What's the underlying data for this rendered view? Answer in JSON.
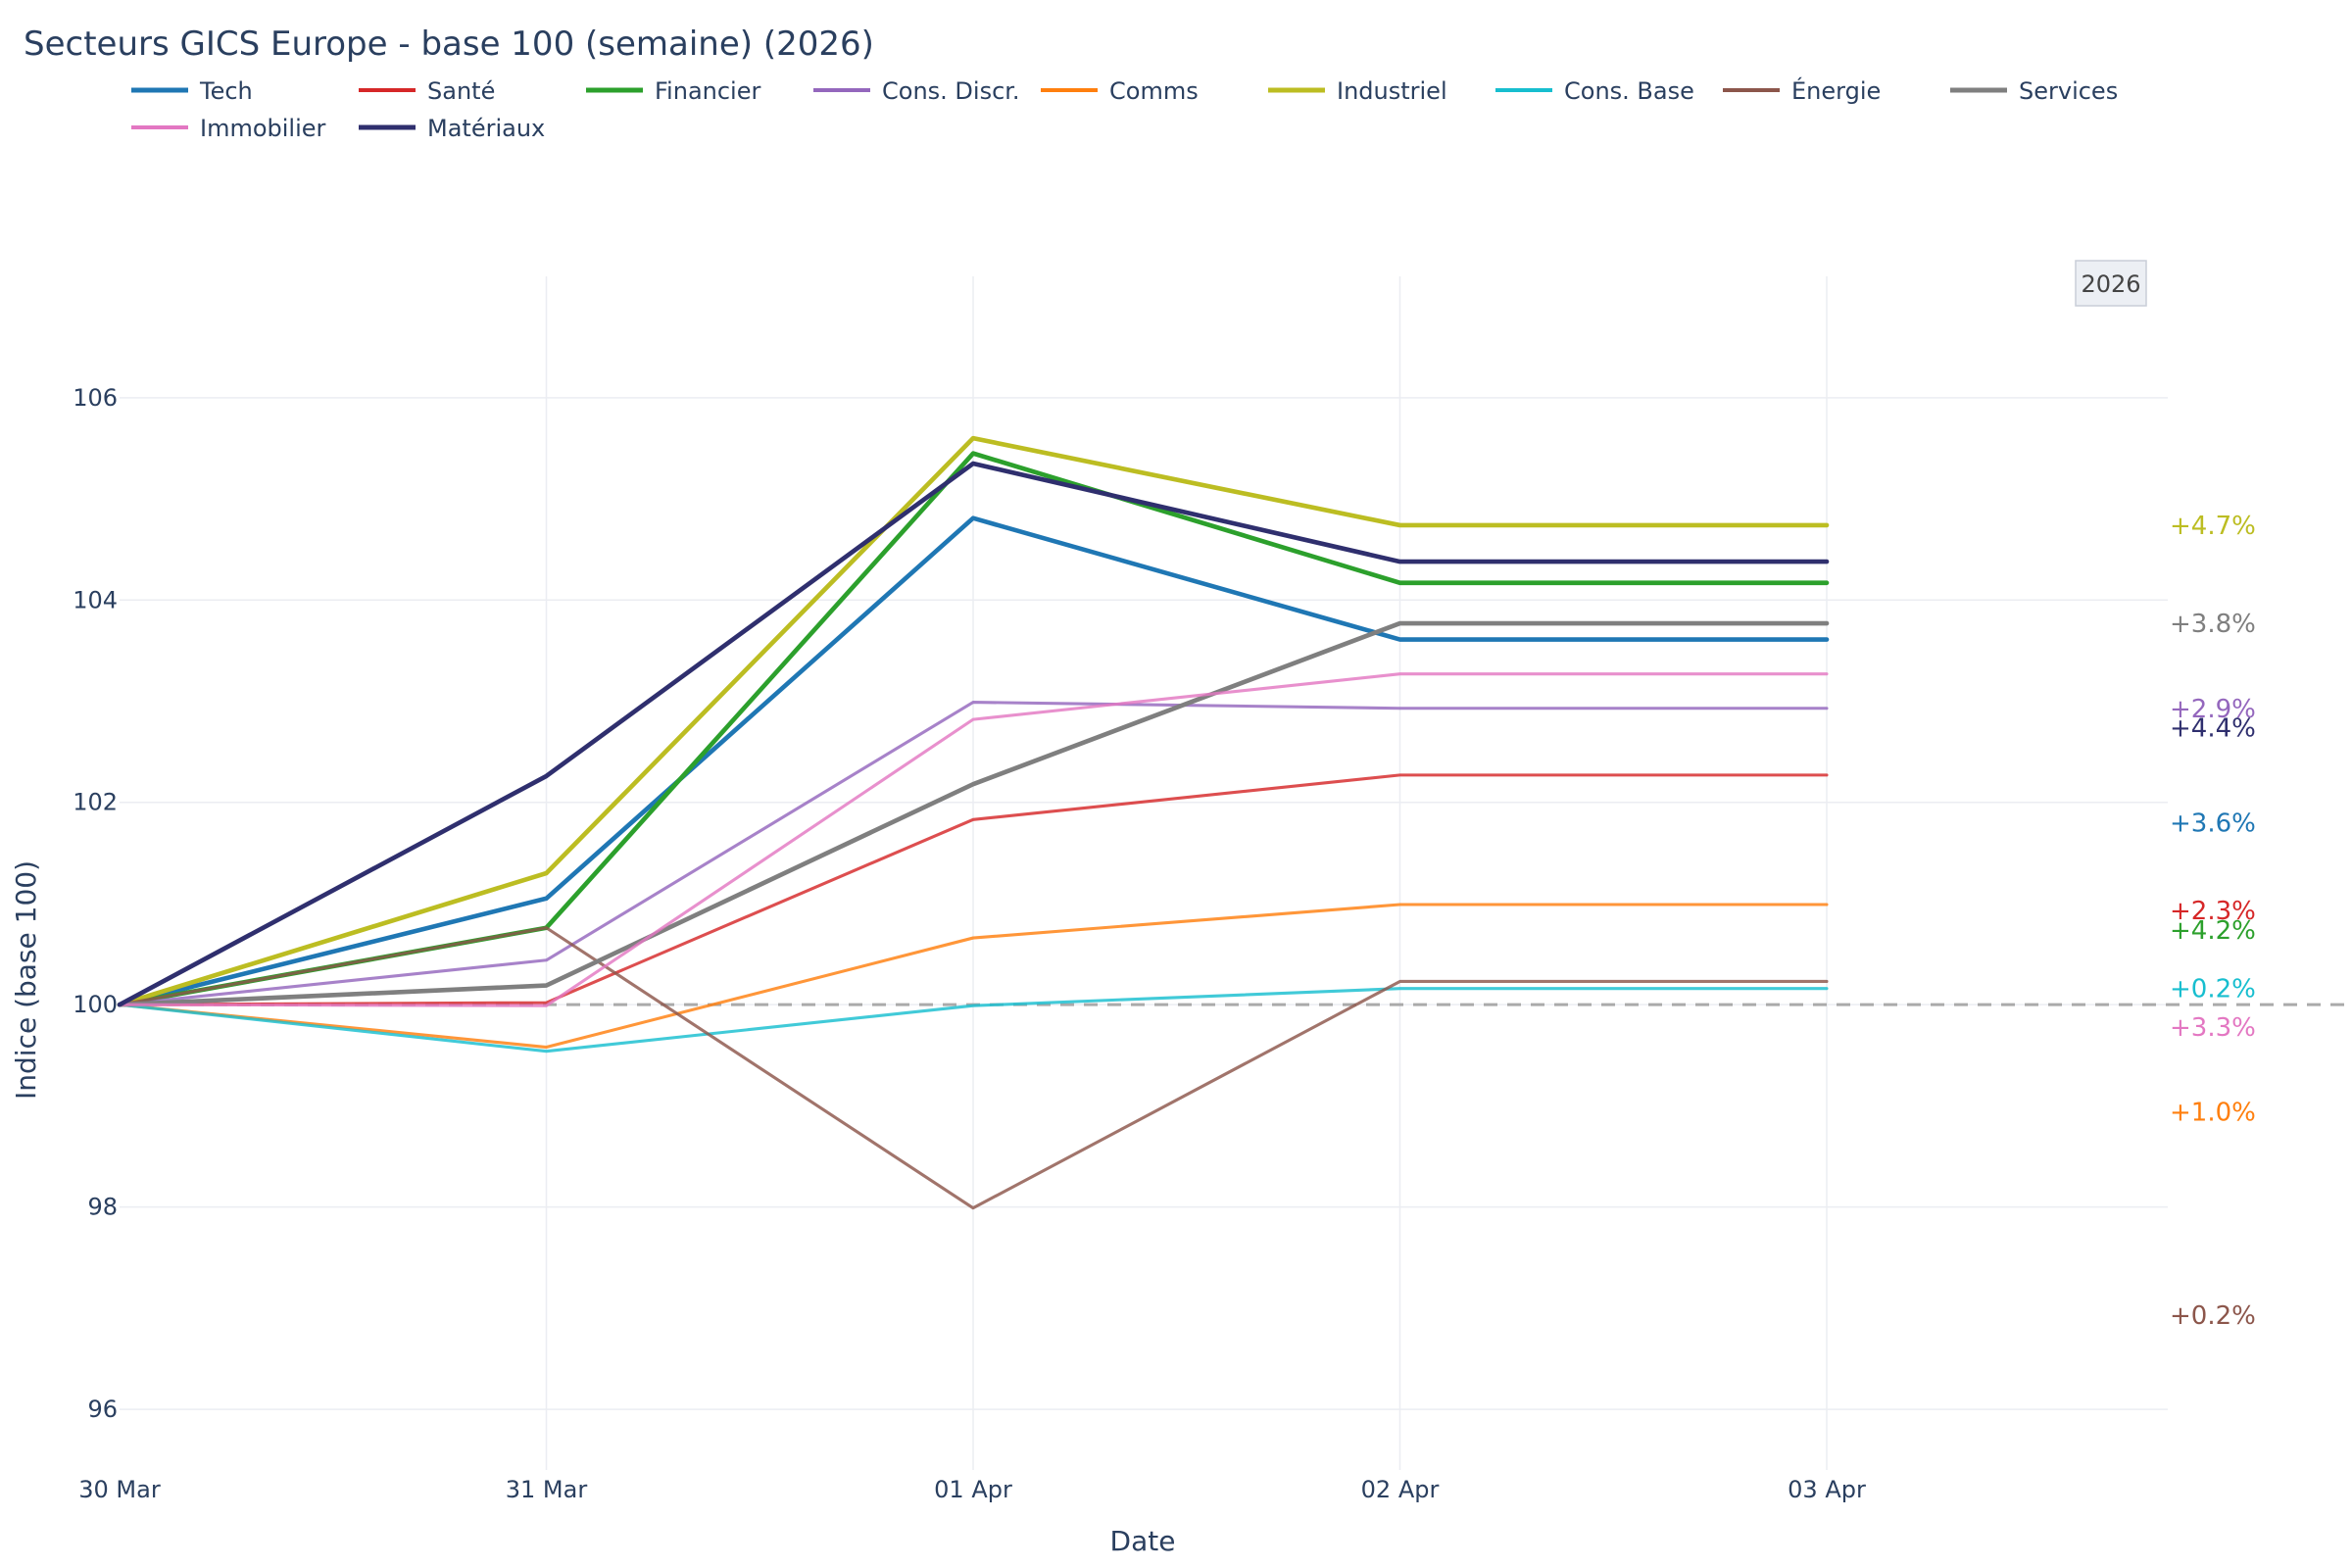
{
  "chart_data": {
    "type": "line",
    "title": "Secteurs GICS Europe - base 100 (semaine) (2026)",
    "xlabel": "Date",
    "ylabel": "Indice (base 100)",
    "x": [
      "30 Mar",
      "31 Mar",
      "01 Apr",
      "02 Apr",
      "03 Apr"
    ],
    "yticks": [
      96,
      98,
      100,
      102,
      104,
      106
    ],
    "ylim": [
      95.4,
      107.2
    ],
    "grid": true,
    "legend_position": "top-left",
    "baseline": 100,
    "year_badge": "2026",
    "series": [
      {
        "name": "Tech",
        "color": "#1f77b4",
        "width": 3,
        "values": [
          100,
          101.05,
          104.81,
          103.61,
          103.61
        ],
        "end_label": "+3.6%",
        "end_label_y": 101.8
      },
      {
        "name": "Santé",
        "color": "#d62728",
        "width": 2,
        "values": [
          100,
          100.02,
          101.83,
          102.27,
          102.27
        ],
        "end_label": "+2.3%",
        "end_label_y": 100.93
      },
      {
        "name": "Financier",
        "color": "#2ca02c",
        "width": 3,
        "values": [
          100,
          100.76,
          105.45,
          104.17,
          104.17
        ],
        "end_label": "+4.2%",
        "end_label_y": 100.74
      },
      {
        "name": "Cons. Discr.",
        "color": "#9467bd",
        "width": 2,
        "values": [
          100,
          100.44,
          102.99,
          102.93,
          102.93
        ],
        "end_label": "+2.9%",
        "end_label_y": 102.93
      },
      {
        "name": "Comms",
        "color": "#ff7f0e",
        "width": 2,
        "values": [
          100,
          99.58,
          100.66,
          100.99,
          100.99
        ],
        "end_label": "+1.0%",
        "end_label_y": 98.94
      },
      {
        "name": "Industriel",
        "color": "#bcbd22",
        "width": 3,
        "values": [
          100,
          101.3,
          105.6,
          104.74,
          104.74
        ],
        "end_label": "+4.7%",
        "end_label_y": 104.74
      },
      {
        "name": "Cons. Base",
        "color": "#17becf",
        "width": 2,
        "values": [
          100,
          99.54,
          99.99,
          100.16,
          100.16
        ],
        "end_label": "+0.2%",
        "end_label_y": 100.16
      },
      {
        "name": "Énergie",
        "color": "#8c564b",
        "width": 2,
        "values": [
          100,
          100.76,
          97.99,
          100.23,
          100.23
        ],
        "end_label": "+0.2%",
        "end_label_y": 96.93
      },
      {
        "name": "Services",
        "color": "#7f7f7f",
        "width": 3,
        "values": [
          100,
          100.19,
          102.18,
          103.77,
          103.77
        ],
        "end_label": "+3.8%",
        "end_label_y": 103.77
      },
      {
        "name": "Immobilier",
        "color": "#e377c2",
        "width": 2,
        "values": [
          100,
          99.99,
          102.82,
          103.27,
          103.27
        ],
        "end_label": "+3.3%",
        "end_label_y": 99.78
      },
      {
        "name": "Matériaux",
        "color": "#2f2f6e",
        "width": 3,
        "values": [
          100,
          102.26,
          105.35,
          104.38,
          104.38
        ],
        "end_label": "+4.4%",
        "end_label_y": 102.74
      }
    ]
  }
}
